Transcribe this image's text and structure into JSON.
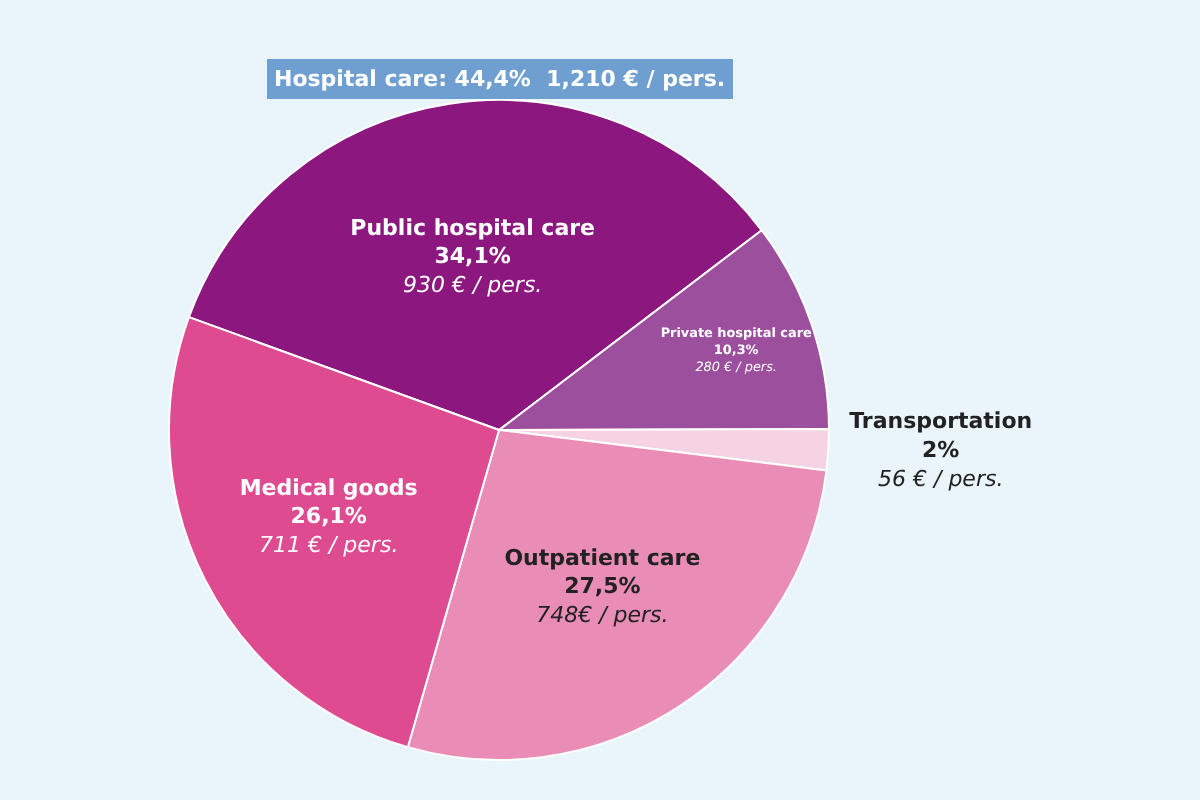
{
  "chart_data": {
    "type": "pie",
    "categories": [
      "Public hospital care",
      "Private hospital care",
      "Transportation",
      "Outpatient care",
      "Medical goods"
    ],
    "values": [
      34.1,
      10.3,
      2,
      27.5,
      26.1
    ],
    "colors": [
      "#8c177e",
      "#9c4f9c",
      "#f6d3e3",
      "#ea8db6",
      "#de4b91"
    ],
    "value_labels": [
      "34,1%\n930 € / pers.",
      "10,3%\n280 € / pers.",
      "2%\n56 € / pers.",
      "27,5%\n748€ / pers.",
      "26,1%\n711 € / pers."
    ],
    "annotations": [
      "Hospital care: 44,4%  1,210 € / pers."
    ],
    "legend": false
  }
}
